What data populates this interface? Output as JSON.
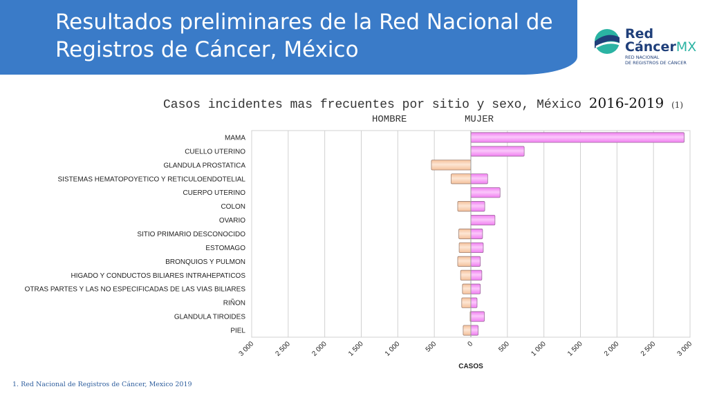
{
  "slide_title": "Resultados preliminares  de la Red Nacional de Registros de Cáncer, México",
  "logo": {
    "word1": "Red",
    "word2": "Cáncer",
    "word3": "MX",
    "sub1": "RED NACIONAL",
    "sub2": "DE REGISTROS DE CÁNCER"
  },
  "chart_heading": {
    "text": "Casos incidentes mas frecuentes por sitio y sexo, México",
    "years": "2016-2019",
    "ref": "(1)"
  },
  "chart_data": {
    "type": "bar",
    "orientation": "horizontal",
    "legend_labels": [
      "HOMBRE",
      "MUJER"
    ],
    "categories": [
      "MAMA",
      "CUELLO UTERINO",
      "GLANDULA PROSTATICA",
      "SISTEMAS HEMATOPOYETICO Y RETICULOENDOTELIAL",
      "CUERPO UTERINO",
      "COLON",
      "OVARIO",
      "SITIO PRIMARIO DESCONOCIDO",
      "ESTOMAGO",
      "BRONQUIOS Y PULMON",
      "HIGADO Y CONDUCTOS BILIARES INTRAHEPATICOS",
      "OTRAS PARTES Y LAS NO ESPECIFICADAS DE LAS VIAS BILIARES",
      "RIÑON",
      "GLANDULA TIROIDES",
      "PIEL"
    ],
    "series": [
      {
        "name": "HOMBRE",
        "values": [
          0,
          0,
          540,
          270,
          0,
          180,
          0,
          165,
          160,
          180,
          140,
          115,
          125,
          10,
          105
        ]
      },
      {
        "name": "MUJER",
        "values": [
          2920,
          730,
          0,
          230,
          400,
          190,
          330,
          160,
          170,
          130,
          150,
          130,
          85,
          185,
          100
        ]
      }
    ],
    "xlim": [
      -3000,
      3000
    ],
    "x_ticks": [
      -3000,
      -2500,
      -2000,
      -1500,
      -1000,
      -500,
      0,
      500,
      1000,
      1500,
      2000,
      2500,
      3000
    ],
    "x_tick_labels": [
      "3 000",
      "2 500",
      "2 000",
      "1 500",
      "1 000",
      "500",
      "0",
      "500",
      "1 000",
      "1 500",
      "2 000",
      "2 500",
      "3 000"
    ],
    "xlabel": "CASOS",
    "grid": true,
    "colors": {
      "hombre": "#f4c09a",
      "mujer": "#f07ef0"
    }
  },
  "footnote": "1. Red Nacional de Registros de Cáncer, Mexico 2019"
}
